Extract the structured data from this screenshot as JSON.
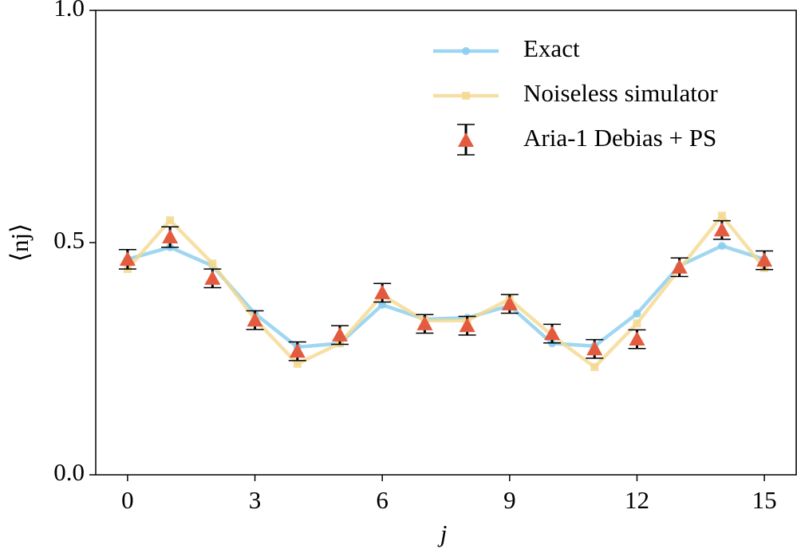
{
  "chart_data": {
    "type": "line",
    "xlabel": "j",
    "ylabel": "⟨nj⟩",
    "x": [
      0,
      1,
      2,
      3,
      4,
      5,
      6,
      7,
      8,
      9,
      10,
      11,
      12,
      13,
      14,
      15
    ],
    "xlim": [
      -0.75,
      15.75
    ],
    "xticks": [
      0,
      3,
      6,
      9,
      12,
      15
    ],
    "ylim": [
      0,
      1
    ],
    "yticks": [
      {
        "value": 0,
        "label": "0.0"
      },
      {
        "value": 0.5,
        "label": "0.5"
      },
      {
        "value": 1,
        "label": "1.0"
      }
    ],
    "legend": "upper right",
    "series": [
      {
        "name": "Exact",
        "color": "#87cdee",
        "marker": "circle",
        "values": [
          0.464,
          0.49,
          0.45,
          0.347,
          0.275,
          0.283,
          0.366,
          0.335,
          0.338,
          0.364,
          0.283,
          0.277,
          0.347,
          0.45,
          0.493,
          0.464
        ]
      },
      {
        "name": "Noiseless simulator",
        "color": "#f5d890",
        "marker": "square",
        "values": [
          0.443,
          0.548,
          0.455,
          0.335,
          0.239,
          0.283,
          0.387,
          0.332,
          0.332,
          0.378,
          0.3,
          0.232,
          0.326,
          0.443,
          0.558,
          0.445
        ]
      },
      {
        "name": "Aria-1 Debias + PS",
        "color": "#e35a3f",
        "marker": "triangle",
        "values": [
          0.464,
          0.512,
          0.423,
          0.333,
          0.266,
          0.301,
          0.392,
          0.325,
          0.321,
          0.368,
          0.304,
          0.271,
          0.292,
          0.447,
          0.527,
          0.462
        ],
        "errors": [
          0.021,
          0.022,
          0.02,
          0.02,
          0.02,
          0.02,
          0.02,
          0.02,
          0.02,
          0.02,
          0.02,
          0.02,
          0.02,
          0.02,
          0.02,
          0.02
        ]
      }
    ]
  }
}
